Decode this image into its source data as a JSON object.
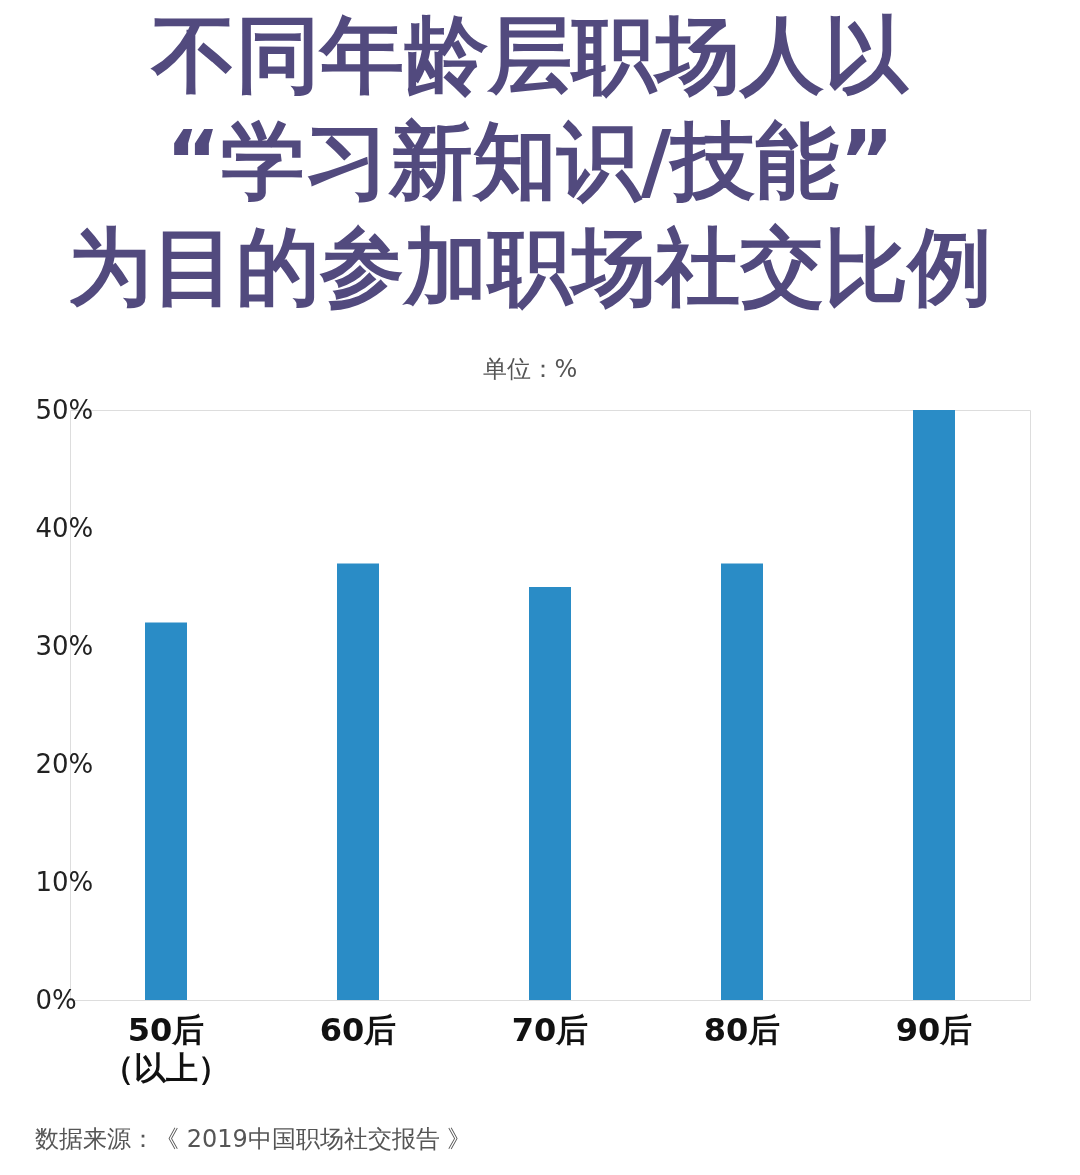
{
  "chart_data": {
    "type": "bar",
    "title": "不同年龄层职场人以\n“学习新知识/技能”\n为目的参加职场社交比例",
    "subtitle": "单位：%",
    "categories": [
      "50后（以上）",
      "60后",
      "70后",
      "80后",
      "90后"
    ],
    "values": [
      32,
      37,
      35,
      37,
      50
    ],
    "color": "#2a8cc6",
    "ylim": [
      0,
      50
    ],
    "yticks": [
      {
        "value": 0,
        "label": "0%"
      },
      {
        "value": 10,
        "label": "10%"
      },
      {
        "value": 20,
        "label": "20%"
      },
      {
        "value": 30,
        "label": "30%"
      },
      {
        "value": 40,
        "label": "40%"
      },
      {
        "value": 50,
        "label": "50%"
      }
    ],
    "annotations": [
      "数据来源：《 2019中国职场社交报告 》"
    ]
  }
}
